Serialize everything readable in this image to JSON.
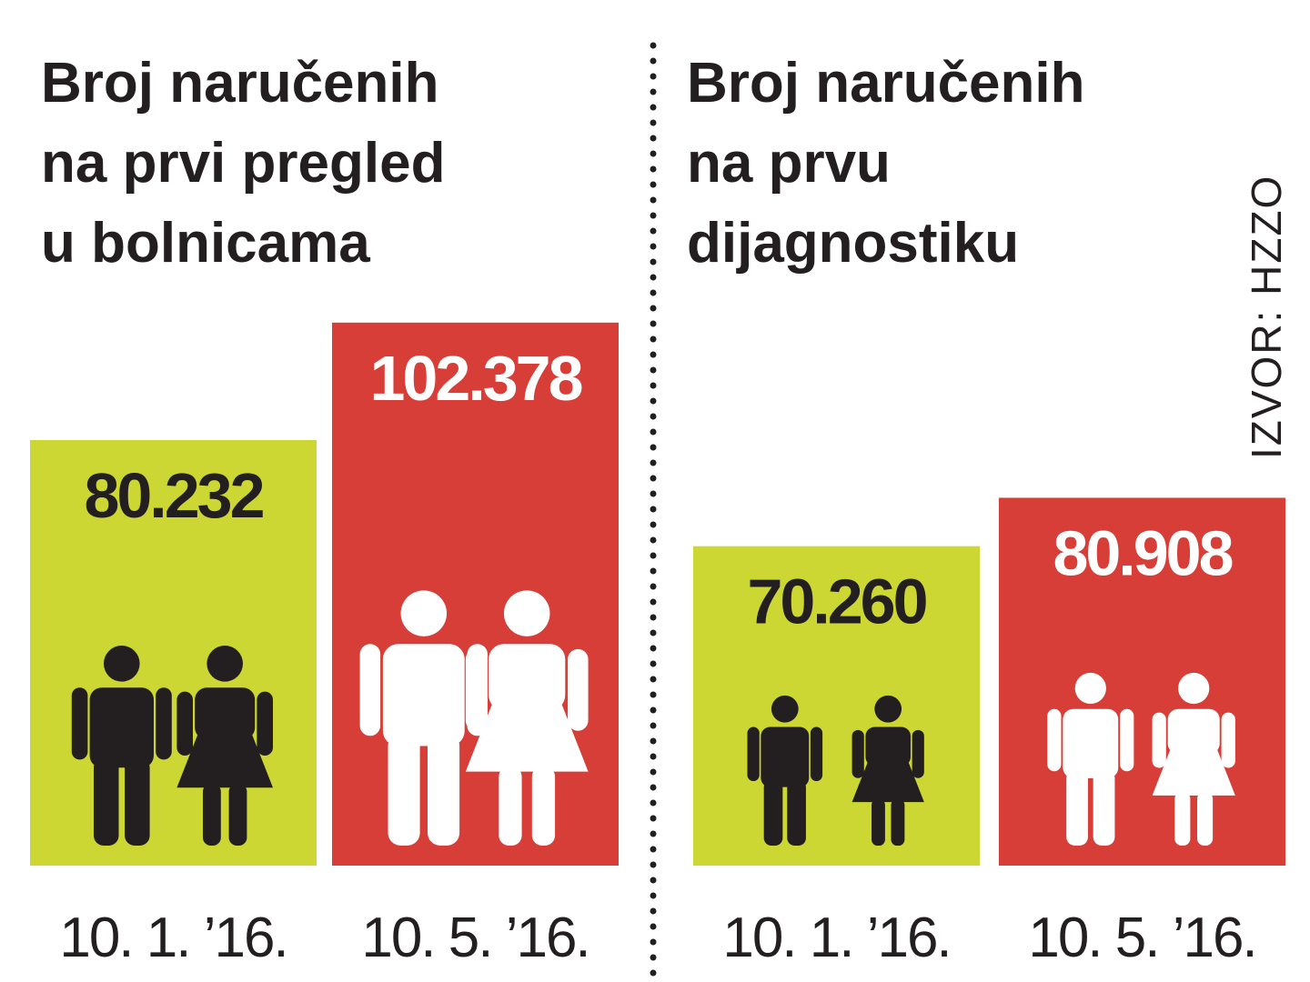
{
  "chart_data": [
    {
      "type": "bar",
      "title": [
        "Broj naručenih",
        "na prvi pregled",
        "u bolnicama"
      ],
      "categories": [
        "10. 1. ’16.",
        "10. 5. ’16."
      ],
      "values": [
        80232,
        102378
      ],
      "value_labels": [
        "80.232",
        "102.378"
      ],
      "colors": [
        "#ccd733",
        "#d63e37"
      ],
      "ylim": [
        0,
        120000
      ]
    },
    {
      "type": "bar",
      "title": [
        "Broj naručenih",
        "na prvu",
        "dijagnostiku"
      ],
      "categories": [
        "10. 1. ’16.",
        "10. 5. ’16."
      ],
      "values": [
        70260,
        80908
      ],
      "value_labels": [
        "70.260",
        "80.908"
      ],
      "colors": [
        "#ccd733",
        "#d63e37"
      ],
      "ylim": [
        0,
        140000
      ]
    }
  ],
  "source": "IZVOR: HZZO"
}
